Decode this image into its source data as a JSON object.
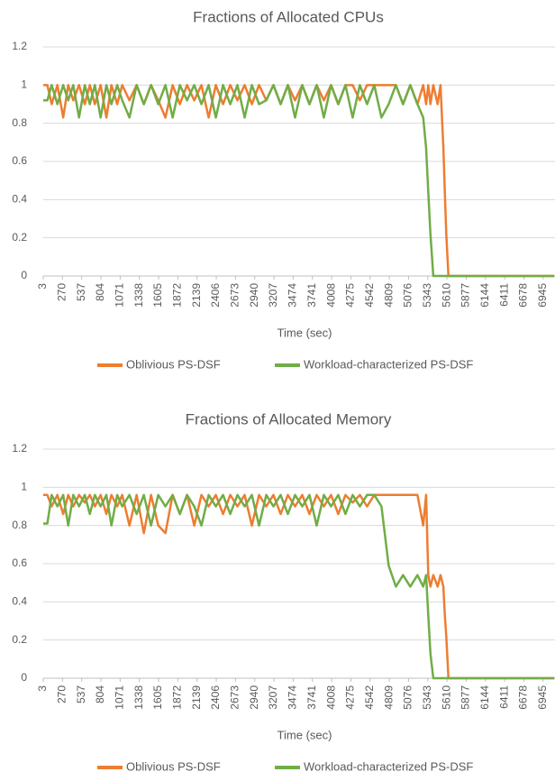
{
  "chart_data": [
    {
      "type": "line",
      "title": "Fractions of Allocated CPUs",
      "x_label": "Time (sec)",
      "x": [
        3,
        60,
        120,
        200,
        280,
        350,
        420,
        500,
        580,
        650,
        720,
        800,
        880,
        950,
        1030,
        1100,
        1200,
        1300,
        1400,
        1500,
        1600,
        1700,
        1800,
        1900,
        2000,
        2100,
        2200,
        2300,
        2400,
        2500,
        2600,
        2700,
        2800,
        2900,
        3000,
        3100,
        3200,
        3300,
        3400,
        3500,
        3600,
        3700,
        3800,
        3900,
        4000,
        4100,
        4200,
        4300,
        4400,
        4500,
        4600,
        4700,
        4800,
        4900,
        5000,
        5100,
        5200,
        5280,
        5320,
        5350,
        5380,
        5420,
        5480,
        5520,
        5560,
        5580,
        5600,
        5630,
        5700,
        6000,
        6500,
        7100
      ],
      "series": [
        {
          "name": "Oblivious PS-DSF",
          "color": "#ed7d31",
          "values": [
            1,
            1,
            0.9,
            1,
            0.83,
            1,
            0.92,
            1,
            0.9,
            1,
            0.9,
            1,
            0.83,
            1,
            0.9,
            1,
            0.92,
            1,
            0.9,
            1,
            0.92,
            0.83,
            1,
            0.9,
            1,
            0.92,
            1,
            0.83,
            1,
            0.9,
            1,
            0.92,
            1,
            0.9,
            1,
            0.92,
            1,
            0.9,
            1,
            0.92,
            1,
            0.9,
            1,
            0.92,
            1,
            0.9,
            1,
            1,
            0.92,
            1,
            1,
            1,
            1,
            1,
            0.9,
            1,
            0.9,
            1,
            0.9,
            1,
            0.9,
            1,
            0.9,
            1,
            0.67,
            0.44,
            0.22,
            0,
            0,
            0,
            0,
            0
          ]
        },
        {
          "name": "Workload-characterized PS-DSF",
          "color": "#70ad47",
          "values": [
            0.92,
            0.92,
            1,
            0.9,
            1,
            0.92,
            1,
            0.83,
            1,
            0.9,
            1,
            0.83,
            1,
            0.9,
            1,
            0.92,
            0.83,
            1,
            0.9,
            1,
            0.9,
            1,
            0.83,
            1,
            0.92,
            1,
            0.9,
            1,
            0.83,
            1,
            0.9,
            1,
            0.83,
            1,
            0.9,
            0.92,
            1,
            0.9,
            1,
            0.83,
            1,
            0.9,
            1,
            0.83,
            1,
            0.9,
            1,
            0.83,
            1,
            0.9,
            1,
            0.83,
            0.9,
            1,
            0.9,
            1,
            0.9,
            0.83,
            0.67,
            0.44,
            0.22,
            0,
            0,
            0,
            0,
            0,
            0,
            0,
            0,
            0,
            0,
            0
          ]
        }
      ],
      "xlim": [
        3,
        7110
      ],
      "xticks": [
        3,
        270,
        537,
        804,
        1071,
        1338,
        1605,
        1872,
        2139,
        2406,
        2673,
        2940,
        3207,
        3474,
        3741,
        4008,
        4275,
        4542,
        4809,
        5076,
        5343,
        5610,
        5877,
        6144,
        6411,
        6678,
        6945
      ],
      "ylim": [
        0,
        1.2
      ],
      "yticks": [
        0,
        0.2,
        0.4,
        0.6,
        0.8,
        1,
        1.2
      ],
      "grid": true,
      "legend": "bottom"
    },
    {
      "type": "line",
      "title": "Fractions of Allocated Memory",
      "x_label": "Time (sec)",
      "x": [
        3,
        60,
        120,
        200,
        280,
        350,
        420,
        500,
        580,
        650,
        720,
        800,
        880,
        950,
        1030,
        1100,
        1200,
        1300,
        1400,
        1500,
        1600,
        1700,
        1800,
        1900,
        2000,
        2100,
        2200,
        2300,
        2400,
        2500,
        2600,
        2700,
        2800,
        2900,
        3000,
        3100,
        3200,
        3300,
        3400,
        3500,
        3600,
        3700,
        3800,
        3900,
        4000,
        4100,
        4200,
        4300,
        4400,
        4500,
        4600,
        4700,
        4800,
        4900,
        5000,
        5100,
        5200,
        5280,
        5320,
        5350,
        5380,
        5420,
        5480,
        5520,
        5560,
        5580,
        5600,
        5630,
        5700,
        6000,
        6500,
        7100
      ],
      "series": [
        {
          "name": "Oblivious PS-DSF",
          "color": "#ed7d31",
          "values": [
            0.96,
            0.96,
            0.9,
            0.96,
            0.86,
            0.96,
            0.9,
            0.96,
            0.92,
            0.96,
            0.9,
            0.96,
            0.86,
            0.96,
            0.9,
            0.96,
            0.8,
            0.96,
            0.76,
            0.96,
            0.8,
            0.76,
            0.96,
            0.86,
            0.96,
            0.8,
            0.96,
            0.9,
            0.96,
            0.86,
            0.96,
            0.9,
            0.96,
            0.8,
            0.96,
            0.9,
            0.96,
            0.86,
            0.96,
            0.9,
            0.96,
            0.86,
            0.96,
            0.9,
            0.96,
            0.86,
            0.96,
            0.92,
            0.96,
            0.9,
            0.96,
            0.96,
            0.96,
            0.96,
            0.96,
            0.96,
            0.96,
            0.8,
            0.96,
            0.54,
            0.48,
            0.54,
            0.48,
            0.54,
            0.48,
            0.33,
            0.22,
            0,
            0,
            0,
            0,
            0
          ]
        },
        {
          "name": "Workload-characterized PS-DSF",
          "color": "#70ad47",
          "values": [
            0.81,
            0.81,
            0.96,
            0.9,
            0.96,
            0.8,
            0.96,
            0.9,
            0.96,
            0.86,
            0.96,
            0.9,
            0.96,
            0.8,
            0.96,
            0.9,
            0.96,
            0.86,
            0.96,
            0.8,
            0.96,
            0.9,
            0.96,
            0.86,
            0.96,
            0.9,
            0.8,
            0.96,
            0.9,
            0.96,
            0.86,
            0.96,
            0.9,
            0.96,
            0.8,
            0.96,
            0.9,
            0.96,
            0.86,
            0.96,
            0.9,
            0.96,
            0.8,
            0.96,
            0.9,
            0.96,
            0.86,
            0.96,
            0.9,
            0.96,
            0.96,
            0.9,
            0.59,
            0.48,
            0.54,
            0.48,
            0.54,
            0.48,
            0.54,
            0.33,
            0.13,
            0,
            0,
            0,
            0,
            0,
            0,
            0,
            0,
            0,
            0,
            0
          ]
        }
      ],
      "xlim": [
        3,
        7110
      ],
      "xticks": [
        3,
        270,
        537,
        804,
        1071,
        1338,
        1605,
        1872,
        2139,
        2406,
        2673,
        2940,
        3207,
        3474,
        3741,
        4008,
        4275,
        4542,
        4809,
        5076,
        5343,
        5610,
        5877,
        6144,
        6411,
        6678,
        6945
      ],
      "ylim": [
        0,
        1.2
      ],
      "yticks": [
        0,
        0.2,
        0.4,
        0.6,
        0.8,
        1,
        1.2
      ],
      "grid": true,
      "legend": "bottom"
    }
  ]
}
